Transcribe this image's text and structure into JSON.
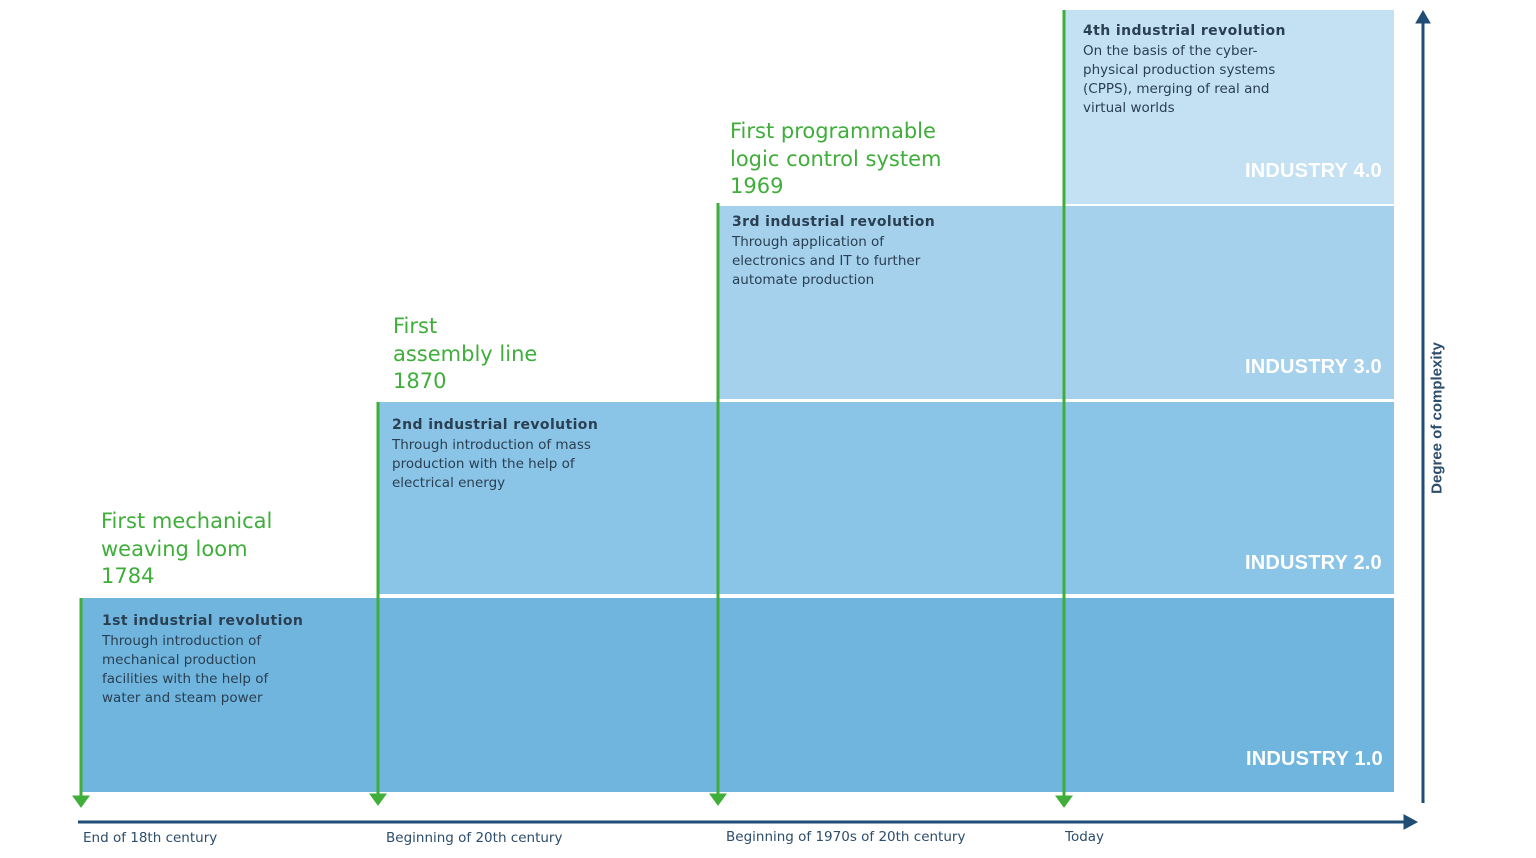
{
  "colors": {
    "level1": "#6fb5de",
    "level2": "#8ac4e6",
    "level3": "#a5d1ec",
    "level4": "#c3e1f3",
    "accent_green": "#3fae3a",
    "axis_navy": "#1f4d74",
    "text_dark": "#2a3f52"
  },
  "levels": [
    {
      "label": "INDUSTRY 1.0"
    },
    {
      "label": "INDUSTRY 2.0"
    },
    {
      "label": "INDUSTRY 3.0"
    },
    {
      "label": "INDUSTRY 4.0"
    }
  ],
  "revolutions": [
    {
      "title": "1st industrial revolution",
      "body": "Through introduction of\nmechanical production\nfacilities with the help of\nwater and steam power"
    },
    {
      "title": "2nd industrial revolution",
      "body": "Through introduction of mass\nproduction with the help of\nelectrical energy"
    },
    {
      "title": "3rd industrial revolution",
      "body": "Through application of\nelectronics and IT to further\nautomate production"
    },
    {
      "title": "4th industrial revolution",
      "body": "On the basis of the cyber-\nphysical production systems\n(CPPS), merging of real and\nvirtual worlds"
    }
  ],
  "milestones": [
    {
      "text": "First mechanical\nweaving loom\n1784"
    },
    {
      "text": "First\nassembly line\n1870"
    },
    {
      "text": "First programmable\nlogic control system\n1969"
    }
  ],
  "timeline": [
    {
      "label": "End of 18th century"
    },
    {
      "label": "Beginning of 20th century"
    },
    {
      "label": "Beginning of 1970s of 20th century"
    },
    {
      "label": "Today"
    }
  ],
  "y_axis_title": "Degree of complexity"
}
